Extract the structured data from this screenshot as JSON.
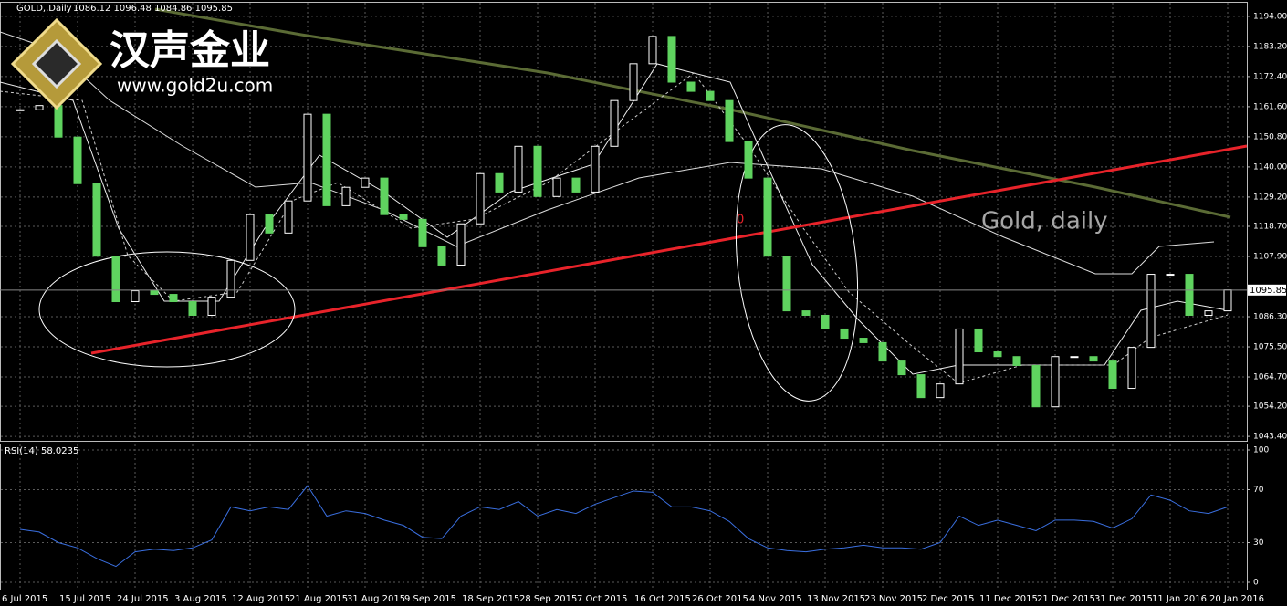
{
  "header": {
    "symbol": "GOLD,,Daily",
    "ohlc": "1086.12 1096.48 1084.86 1095.85"
  },
  "logo": {
    "brand": "汉声金业",
    "url": "www.gold2u.com"
  },
  "chart_data": [
    {
      "type": "candlestick",
      "annotation": "Gold, daily",
      "marker": "0",
      "categories": [
        "6 Jul 2015",
        null,
        null,
        "15 Jul 2015",
        null,
        null,
        "24 Jul 2015",
        null,
        null,
        "3 Aug 2015",
        null,
        null,
        "12 Aug 2015",
        null,
        null,
        "21 Aug 2015",
        null,
        null,
        "31 Aug 2015",
        null,
        null,
        "9 Sep 2015",
        null,
        null,
        "18 Sep 2015",
        null,
        null,
        "28 Sep 2015",
        null,
        null,
        "7 Oct 2015",
        null,
        null,
        "16 Oct 2015",
        null,
        null,
        "26 Oct 2015",
        null,
        null,
        "4 Nov 2015",
        null,
        null,
        "13 Nov 2015",
        null,
        null,
        "23 Nov 2015",
        null,
        null,
        "2 Dec 2015",
        null,
        null,
        "11 Dec 2015",
        null,
        null,
        "21 Dec 2015",
        null,
        null,
        "31 Dec 2015",
        null,
        null,
        "11 Jan 2016",
        null,
        null,
        "20 Jan 2016"
      ],
      "series": [
        {
          "name": "GOLD",
          "up_color": "#ffffff",
          "down_color": "#5fd35f",
          "values": [
            1160.5,
            1162,
            1150.7,
            1134,
            1108,
            1091.7,
            1095.6,
            1094.3,
            1091.7,
            1086.8,
            1093.3,
            1106.5,
            1122.9,
            1116.3,
            1127.8,
            1158.9,
            1126.1,
            1132.7,
            1136,
            1122.9,
            1121.2,
            1111.4,
            1104.8,
            1119.6,
            1137.6,
            1131,
            1147.4,
            1129.4,
            1136,
            1131,
            1147.4,
            1163.8,
            1177,
            1186.8,
            1170.4,
            1167.1,
            1163.8,
            1149.1,
            1136,
            1108,
            1088.4,
            1086.8,
            1081.9,
            1078.6,
            1077,
            1070.4,
            1065.5,
            1057.3,
            1062.2,
            1081.9,
            1073.7,
            1072,
            1068.8,
            1054,
            1072,
            1072,
            1070.4,
            1060.6,
            1075.3,
            1101.5,
            1101.5,
            1086.8,
            1088.4,
            1095.9
          ]
        }
      ],
      "last_price": {
        "value": 1095.85,
        "label": "1095.85"
      },
      "ylim": [
        1041.8,
        1199.2
      ],
      "yticks": [
        {
          "value": 1194,
          "label": "1194.00"
        },
        {
          "value": 1183.2,
          "label": "1183.20"
        },
        {
          "value": 1172.4,
          "label": "1172.40"
        },
        {
          "value": 1161.6,
          "label": "1161.60"
        },
        {
          "value": 1150.8,
          "label": "1150.80"
        },
        {
          "value": 1140,
          "label": "1140.00"
        },
        {
          "value": 1129.2,
          "label": "1129.20"
        },
        {
          "value": 1118.7,
          "label": "1118.70"
        },
        {
          "value": 1107.9,
          "label": "1107.90"
        },
        {
          "value": 1086.3,
          "label": "1086.30"
        },
        {
          "value": 1075.5,
          "label": "1075.50"
        },
        {
          "value": 1064.7,
          "label": "1064.70"
        },
        {
          "value": 1054.2,
          "label": "1054.20"
        },
        {
          "value": 1043.4,
          "label": "1043.40"
        }
      ],
      "grid": true
    },
    {
      "type": "line",
      "title": "RSI(14) 58.0235",
      "series": [
        {
          "name": "RSI(14)",
          "color": "#3a6fe0",
          "values": [
            40,
            38,
            30,
            26,
            18,
            12,
            23,
            25,
            24,
            26,
            32,
            57,
            54,
            57,
            55,
            73,
            50,
            54,
            52,
            47,
            43,
            34,
            33,
            50,
            57,
            55,
            61,
            50,
            55,
            52,
            59,
            64,
            69,
            68,
            57,
            57,
            54,
            46,
            33,
            26,
            24,
            23,
            25,
            26,
            28,
            26,
            26,
            25,
            30,
            50,
            43,
            47,
            43,
            39,
            47,
            47,
            46,
            41,
            48,
            66,
            62,
            54,
            52,
            57
          ]
        }
      ],
      "ylim": [
        0,
        100
      ],
      "yticks": [
        0,
        30,
        70,
        100
      ],
      "grid": true
    }
  ]
}
